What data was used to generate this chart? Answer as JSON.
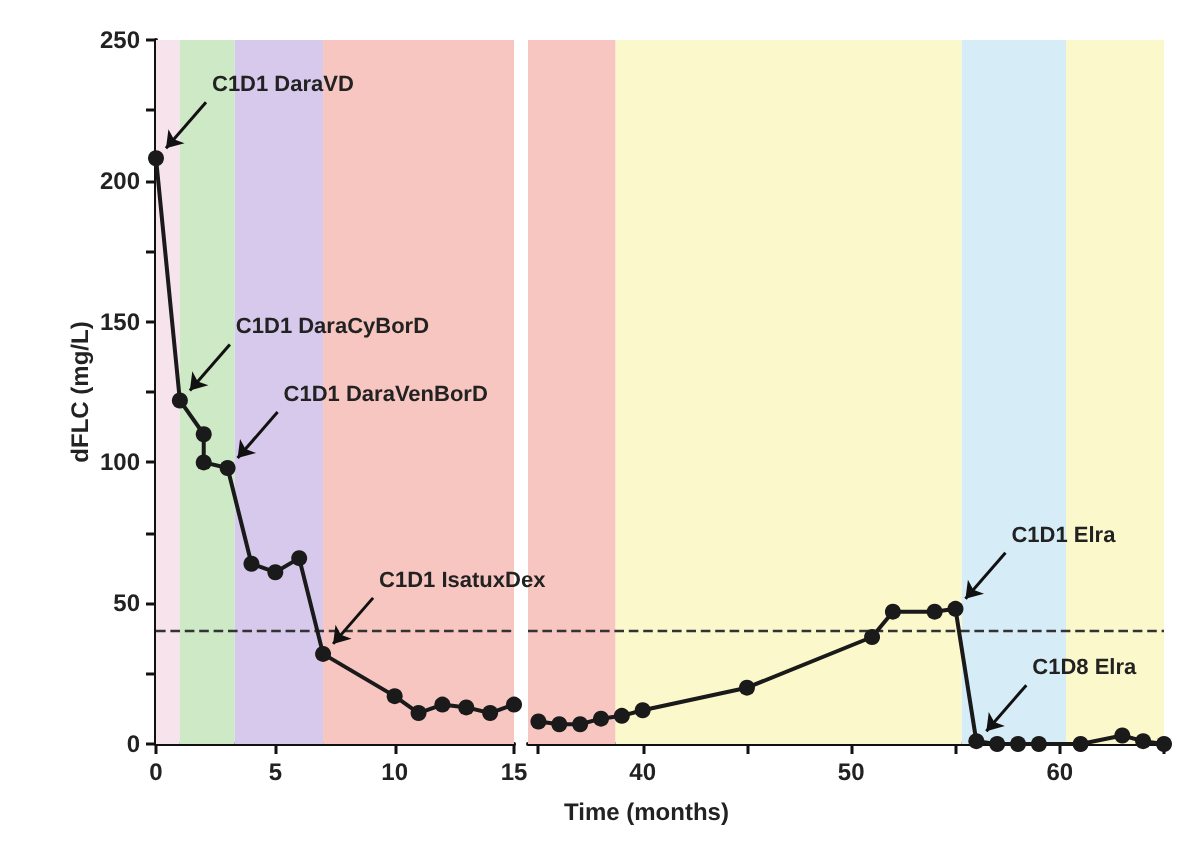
{
  "chart_data": [
    {
      "type": "line",
      "ylabel": "dFLC (mg/L)",
      "x": [
        0,
        1,
        2,
        2,
        3,
        4,
        5,
        6,
        7,
        10,
        11,
        12,
        13,
        14,
        15
      ],
      "series": [
        {
          "color": "#1a1a1a",
          "values": [
            208,
            122,
            110,
            100,
            98,
            64,
            61,
            66,
            32,
            17,
            11,
            14,
            13,
            11,
            14
          ]
        }
      ],
      "xlim": [
        0,
        15
      ],
      "xticks": [
        0,
        5,
        10,
        15
      ],
      "ylim": [
        0,
        250
      ],
      "yticks": [
        0,
        {
          "value": 25,
          "label": null
        },
        50,
        {
          "value": 75,
          "label": null
        },
        100,
        {
          "value": 125,
          "label": null
        },
        150,
        {
          "value": 175,
          "label": null
        },
        200,
        {
          "value": 225,
          "label": null
        },
        250
      ],
      "marker": "circle",
      "line_style": "solid",
      "ref_lines": [
        {
          "axis": "y",
          "value": 40,
          "line_style": "dashed",
          "color": "#333333"
        }
      ],
      "bands": [
        {
          "axis": "x",
          "from": 0,
          "to": 1,
          "color": "#f6e3ec"
        },
        {
          "axis": "x",
          "from": 1,
          "to": 3.3,
          "color": "#cde9c6"
        },
        {
          "axis": "x",
          "from": 3.3,
          "to": 7,
          "color": "#d7c9ec"
        },
        {
          "axis": "x",
          "from": 7,
          "to": 15,
          "color": "#f8c6c0"
        }
      ],
      "annotations": [
        {
          "text": "C1D1 DaraVD",
          "x": 0,
          "y": 208
        },
        {
          "text": "C1D1 DaraCyBorD",
          "x": 1,
          "y": 122
        },
        {
          "text": "C1D1 DaraVenBorD",
          "x": 3,
          "y": 98
        },
        {
          "text": "C1D1 IsatuxDex",
          "x": 7,
          "y": 32
        }
      ]
    },
    {
      "type": "line",
      "xlabel": "Time (months)",
      "x": [
        35,
        36,
        37,
        38,
        39,
        40,
        45,
        51,
        52,
        54,
        55,
        56,
        57,
        58,
        59,
        61,
        63,
        64,
        65
      ],
      "series": [
        {
          "color": "#1a1a1a",
          "values": [
            8,
            7,
            7,
            9,
            10,
            12,
            20,
            38,
            47,
            47,
            48,
            1,
            0,
            0,
            0,
            0,
            3,
            1,
            0
          ]
        }
      ],
      "xlim": [
        34.5,
        65
      ],
      "xticks": [
        {
          "value": 35,
          "label": null
        },
        40,
        {
          "value": 45,
          "label": null
        },
        50,
        {
          "value": 55,
          "label": null
        },
        60,
        {
          "value": 65,
          "label": null
        }
      ],
      "ylim": [
        0,
        250
      ],
      "tick_labels": "x",
      "marker": "circle",
      "line_style": "solid",
      "ref_lines": [
        {
          "axis": "y",
          "value": 40,
          "line_style": "dashed",
          "color": "#333333"
        }
      ],
      "bands": [
        {
          "axis": "x",
          "from": 34.5,
          "to": 38.7,
          "color": "#f8c6c0"
        },
        {
          "axis": "x",
          "from": 38.7,
          "to": 55.3,
          "color": "#fbf8cc"
        },
        {
          "axis": "x",
          "from": 55.3,
          "to": 60.3,
          "color": "#d6edf8"
        },
        {
          "axis": "x",
          "from": 60.3,
          "to": 65,
          "color": "#fbf8cc"
        }
      ],
      "annotations": [
        {
          "text": "C1D1 Elra",
          "x": 55,
          "y": 48
        },
        {
          "text": "C1D8 Elra",
          "x": 56,
          "y": 1
        }
      ]
    }
  ]
}
